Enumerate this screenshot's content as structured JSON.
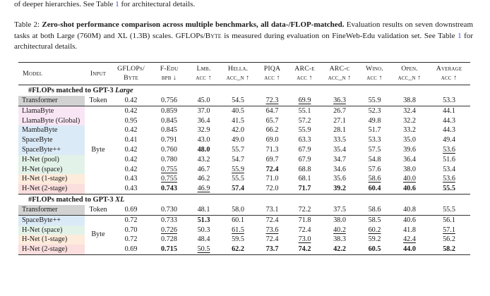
{
  "colors": {
    "highlight_gray": "#d2d2d2",
    "highlight_pink": "#f9e6f4",
    "highlight_blue": "#dbeaf7",
    "highlight_green": "#e2f2e8",
    "highlight_orange": "#fdebdb",
    "highlight_red": "#fbdede",
    "link_blue": "#2b50e6",
    "rule": "#2e2e2e"
  },
  "body_text": {
    "pre": "of deeper hierarchies. See Table ",
    "link": "1",
    "post": " for architectural details."
  },
  "caption": {
    "label": "Table 2: ",
    "bold": "Zero-shot performance comparison across multiple benchmarks, all data-/FLOP-matched.",
    "seg1": " Evaluation results on seven downstream tasks at both Large (760M) and XL (1.3B) scales. GFLOPs/",
    "byte": "Byte",
    "seg2": " is measured during evaluation on FineWeb-Edu validation set. See Table ",
    "link": "1",
    "seg3": " for architectural details."
  },
  "table": {
    "headers": [
      {
        "top": "Model",
        "sub": ""
      },
      {
        "top": "Input",
        "sub": ""
      },
      {
        "top": "GFLOPs/",
        "sub": "Byte"
      },
      {
        "top": "F-Edu",
        "sub": "bpb ↓"
      },
      {
        "top": "Lmb.",
        "sub": "acc ↑"
      },
      {
        "top": "Hella.",
        "sub": "acc_n ↑"
      },
      {
        "top": "PIQA",
        "sub": "acc ↑"
      },
      {
        "top": "ARC-e",
        "sub": "acc ↑"
      },
      {
        "top": "ARC-c",
        "sub": "acc_n ↑"
      },
      {
        "top": "Wino.",
        "sub": "acc ↑"
      },
      {
        "top": "Open.",
        "sub": "acc_n ↑"
      },
      {
        "top": "Average",
        "sub": "acc ↑"
      }
    ],
    "sections": [
      {
        "title_prefix": "#FLOPs matched to GPT-3 ",
        "title_scale": "Large",
        "rows": [
          {
            "model": "Transformer",
            "hl": "gray",
            "input": "Token",
            "input_span": 1,
            "cells": [
              "0.42",
              "0.756",
              "45.0",
              "54.5",
              "_72.3",
              "_69.9",
              "_36.3",
              "55.9",
              "38.8",
              "53.3"
            ]
          },
          {
            "model": "LlamaByte",
            "hl": "pink",
            "input": "Byte",
            "input_span": 9,
            "cells": [
              "0.42",
              "0.859",
              "37.0",
              "40.5",
              "64.7",
              "55.1",
              "26.7",
              "52.3",
              "32.4",
              "44.1"
            ]
          },
          {
            "model": "LlamaByte (Global)",
            "hl": "pink",
            "cells": [
              "0.95",
              "0.845",
              "36.4",
              "41.5",
              "65.7",
              "57.2",
              "27.1",
              "49.8",
              "32.2",
              "44.3"
            ]
          },
          {
            "model": "MambaByte",
            "hl": "blue",
            "cells": [
              "0.42",
              "0.845",
              "32.9",
              "42.0",
              "66.2",
              "55.9",
              "28.1",
              "51.7",
              "33.2",
              "44.3"
            ]
          },
          {
            "model": "SpaceByte",
            "hl": "blue",
            "cells": [
              "0.41",
              "0.791",
              "43.0",
              "49.0",
              "69.0",
              "63.3",
              "33.5",
              "53.3",
              "35.0",
              "49.4"
            ]
          },
          {
            "model": "SpaceByte++",
            "hl": "blue",
            "cells": [
              "0.42",
              "0.760",
              "*48.0",
              "55.7",
              "71.3",
              "67.9",
              "35.4",
              "57.5",
              "39.6",
              "_53.6"
            ]
          },
          {
            "model": "H-Net (pool)",
            "hl": "green",
            "cells": [
              "0.42",
              "0.780",
              "43.2",
              "54.7",
              "69.7",
              "67.9",
              "34.7",
              "54.8",
              "36.4",
              "51.6"
            ]
          },
          {
            "model": "H-Net (space)",
            "hl": "green",
            "cells": [
              "0.42",
              "_0.755",
              "46.7",
              "_55.9",
              "*72.4",
              "68.8",
              "34.6",
              "57.6",
              "38.0",
              "53.4"
            ]
          },
          {
            "model": "H-Net (1-stage)",
            "hl": "orange",
            "cells": [
              "0.43",
              "_0.755",
              "46.2",
              "55.5",
              "71.0",
              "68.1",
              "35.6",
              "_58.6",
              "_40.0",
              "_53.6"
            ]
          },
          {
            "model": "H-Net (2-stage)",
            "hl": "red",
            "cells": [
              "0.43",
              "*0.743",
              "_46.9",
              "*57.4",
              "72.0",
              "*71.7",
              "*39.2",
              "*60.4",
              "*40.6",
              "*55.5"
            ]
          }
        ]
      },
      {
        "title_prefix": "#FLOPs matched to GPT-3 ",
        "title_scale": "XL",
        "rows": [
          {
            "model": "Transformer",
            "hl": "gray",
            "input": "Token",
            "input_span": 1,
            "cells": [
              "0.69",
              "0.730",
              "48.1",
              "58.0",
              "73.1",
              "72.2",
              "37.5",
              "58.6",
              "40.8",
              "55.5"
            ]
          },
          {
            "model": "SpaceByte++",
            "hl": "blue",
            "input": "Byte",
            "input_span": 4,
            "cells": [
              "0.72",
              "0.733",
              "*51.3",
              "60.1",
              "72.4",
              "71.8",
              "38.0",
              "58.5",
              "40.6",
              "56.1"
            ]
          },
          {
            "model": "H-Net (space)",
            "hl": "green",
            "cells": [
              "0.70",
              "_0.726",
              "50.3",
              "_61.5",
              "_73.6",
              "72.4",
              "_40.2",
              "_60.2",
              "41.8",
              "_57.1"
            ]
          },
          {
            "model": "H-Net (1-stage)",
            "hl": "orange",
            "cells": [
              "0.72",
              "0.728",
              "48.4",
              "59.5",
              "72.4",
              "_73.0",
              "38.3",
              "59.2",
              "_42.4",
              "56.2"
            ]
          },
          {
            "model": "H-Net (2-stage)",
            "hl": "red",
            "cells": [
              "0.69",
              "*0.715",
              "_50.5",
              "*62.2",
              "*73.7",
              "*74.2",
              "*42.2",
              "*60.5",
              "*44.0",
              "*58.2"
            ]
          }
        ]
      }
    ]
  }
}
